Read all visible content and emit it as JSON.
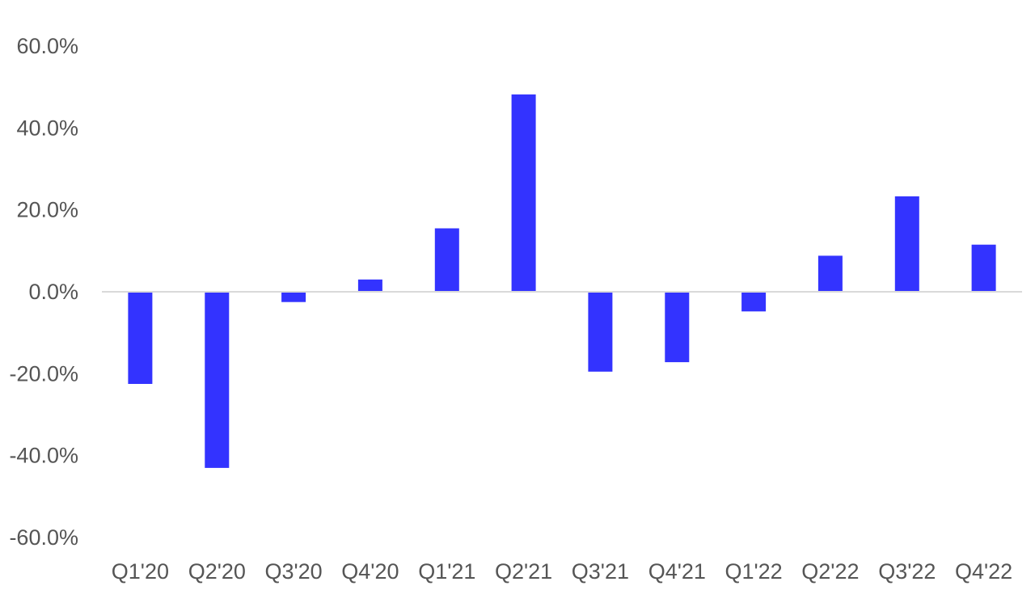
{
  "chart_data": {
    "type": "bar",
    "title": "",
    "xlabel": "",
    "ylabel": "",
    "categories": [
      "Q1'20",
      "Q2'20",
      "Q3'20",
      "Q4'20",
      "Q1'21",
      "Q2'21",
      "Q3'21",
      "Q4'21",
      "Q1'22",
      "Q2'22",
      "Q3'22",
      "Q4'22"
    ],
    "values": [
      -22.5,
      -43.0,
      -2.5,
      3.0,
      15.5,
      48.2,
      -19.5,
      -17.2,
      -4.8,
      8.8,
      23.3,
      11.5
    ],
    "ylim": [
      -60,
      60
    ],
    "yticks": [
      60,
      40,
      20,
      0,
      -20,
      -40,
      -60
    ],
    "ytick_labels": [
      "60.0%",
      "40.0%",
      "20.0%",
      "0.0%",
      "-20.0%",
      "-40.0%",
      "-60.0%"
    ],
    "grid": false,
    "legend": "none",
    "colors": {
      "bar": "#3333ff",
      "zero_line": "#d9d9d9",
      "tick_text": "#555555"
    }
  }
}
